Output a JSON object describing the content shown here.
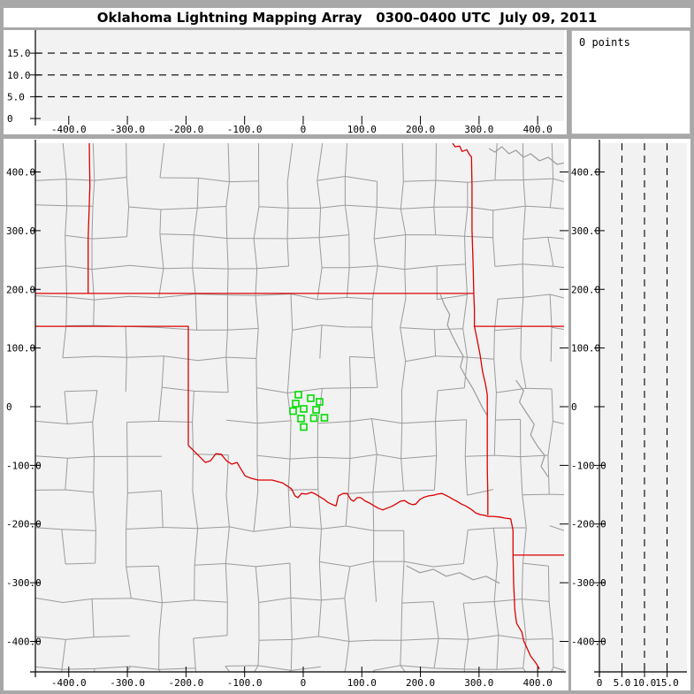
{
  "title": "Oklahoma Lightning Mapping Array   0300–0400 UTC  July 09, 2011",
  "status": {
    "points_label": "0 points"
  },
  "colors": {
    "background": "#a8a8a8",
    "panel": "#ffffff",
    "plot_bg": "#f2f2f2",
    "county_line": "#9b9b9b",
    "state_border": "#dd0000",
    "station_marker": "#00dd00",
    "axis": "#000000"
  },
  "chart_data": [
    {
      "type": "scatter",
      "title": "altitude (km) vs east-west distance (km) — top panel",
      "x_ticks": {
        "values": [
          -400,
          -300,
          -200,
          -100,
          0,
          100,
          200,
          300,
          400
        ],
        "labels": [
          "-400.0",
          "-300.0",
          "-200.0",
          "-100.0",
          "0",
          "100.0",
          "200.0",
          "300.0",
          "400.0"
        ]
      },
      "y_ticks": {
        "values": [
          15,
          10,
          5,
          0
        ],
        "labels": [
          "15.0",
          "10.0",
          "5.0",
          "0"
        ]
      },
      "xlim": [
        -457,
        445
      ],
      "ylim": [
        -0.6,
        20.3
      ],
      "dashed_y": [
        15,
        10,
        5
      ],
      "grid": "dashed horizontal only",
      "points": []
    },
    {
      "type": "scatter",
      "title": "plan view map (north-south km vs east-west km) — center panel",
      "x_ticks": {
        "values": [
          -400,
          -300,
          -200,
          -100,
          0,
          100,
          200,
          300,
          400
        ],
        "labels": [
          "-400.0",
          "-300.0",
          "-200.0",
          "-100.0",
          "0",
          "100.0",
          "200.0",
          "300.0",
          "400.0"
        ]
      },
      "y_ticks": {
        "values": [
          400,
          300,
          200,
          100,
          0,
          -100,
          -200,
          -300,
          -400
        ],
        "labels": [
          "400.0",
          "300.0",
          "200.0",
          "100.0",
          "0",
          "-100.0",
          "-200.0",
          "-300.0",
          "-400.0"
        ]
      },
      "xlim": [
        -457,
        445
      ],
      "ylim": [
        -452,
        449
      ],
      "points": [],
      "stations_km": [
        [
          -8.3,
          20.3
        ],
        [
          12.8,
          14.3
        ],
        [
          -12.8,
          5.3
        ],
        [
          27.9,
          8.3
        ],
        [
          -17.3,
          -7.5
        ],
        [
          0.8,
          -3.8
        ],
        [
          21.9,
          -5.3
        ],
        [
          -3.8,
          -20.3
        ],
        [
          18.1,
          -19.6
        ],
        [
          36.2,
          -18.8
        ],
        [
          0.8,
          -34.6
        ]
      ]
    },
    {
      "type": "scatter",
      "title": "north-south distance (km) vs altitude (km) — right panel",
      "x_ticks": {
        "values": [
          0,
          5,
          10,
          15
        ],
        "labels": [
          "0",
          "5.0",
          "10.0",
          "15.0"
        ]
      },
      "y_ticks": {
        "values": [
          400,
          300,
          200,
          100,
          0,
          -100,
          -200,
          -300,
          -400
        ],
        "labels": [
          "400.0",
          "300.0",
          "200.0",
          "100.0",
          "0",
          "-100.0",
          "-200.0",
          "-300.0",
          "-400.0"
        ]
      },
      "xlim": [
        0,
        19.4
      ],
      "ylim": [
        -452,
        449
      ],
      "dashed_x": [
        5,
        10,
        15
      ],
      "grid": "dashed vertical only",
      "points": []
    }
  ],
  "map_layers": {
    "state_borders_km": [
      [
        [
          -365,
          449
        ],
        [
          -364,
          376
        ],
        [
          -367,
          286
        ],
        [
          -367,
          193
        ]
      ],
      [
        [
          -457,
          193
        ],
        [
          291,
          193
        ]
      ],
      [
        [
          255,
          449
        ],
        [
          259,
          443
        ],
        [
          267,
          444
        ],
        [
          271,
          435
        ],
        [
          279,
          438
        ],
        [
          284,
          429
        ],
        [
          287,
          426
        ],
        [
          288,
          376
        ],
        [
          288,
          301
        ],
        [
          290,
          240
        ],
        [
          291,
          193
        ],
        [
          292,
          166
        ],
        [
          292,
          137
        ],
        [
          297,
          113
        ],
        [
          302,
          87
        ],
        [
          306,
          60
        ],
        [
          311,
          38
        ],
        [
          314,
          20
        ],
        [
          314,
          -15
        ],
        [
          314,
          -60
        ],
        [
          314,
          -105
        ],
        [
          315,
          -151
        ],
        [
          315,
          -185
        ]
      ],
      [
        [
          292,
          137
        ],
        [
          448,
          137
        ]
      ],
      [
        [
          -457,
          137
        ],
        [
          -196,
          137
        ],
        [
          -196,
          -66
        ]
      ],
      [
        [
          -196,
          -66
        ],
        [
          -182,
          -80
        ],
        [
          -173,
          -89
        ],
        [
          -167,
          -95
        ],
        [
          -158,
          -92
        ],
        [
          -149,
          -80
        ],
        [
          -140,
          -81
        ],
        [
          -131,
          -92
        ],
        [
          -122,
          -98
        ],
        [
          -113,
          -95
        ],
        [
          -107,
          -105
        ],
        [
          -99,
          -118
        ],
        [
          -89,
          -122
        ],
        [
          -77,
          -125
        ],
        [
          -65,
          -125
        ],
        [
          -53,
          -125
        ],
        [
          -42,
          -128
        ],
        [
          -35,
          -130
        ],
        [
          -26,
          -136
        ],
        [
          -20,
          -140
        ],
        [
          -14,
          -152
        ],
        [
          -9,
          -155
        ],
        [
          -3,
          -148
        ],
        [
          5,
          -149
        ],
        [
          14,
          -146
        ],
        [
          21,
          -149
        ],
        [
          29,
          -154
        ],
        [
          36,
          -158
        ],
        [
          42,
          -163
        ],
        [
          50,
          -167
        ],
        [
          56,
          -169
        ],
        [
          60,
          -152
        ],
        [
          68,
          -148
        ],
        [
          75,
          -148
        ],
        [
          81,
          -158
        ],
        [
          86,
          -161
        ],
        [
          92,
          -155
        ],
        [
          98,
          -155
        ],
        [
          106,
          -161
        ],
        [
          113,
          -164
        ],
        [
          121,
          -169
        ],
        [
          128,
          -173
        ],
        [
          136,
          -176
        ],
        [
          143,
          -173
        ],
        [
          151,
          -170
        ],
        [
          158,
          -166
        ],
        [
          166,
          -161
        ],
        [
          173,
          -160
        ],
        [
          179,
          -164
        ],
        [
          186,
          -167
        ],
        [
          192,
          -166
        ],
        [
          199,
          -158
        ],
        [
          207,
          -154
        ],
        [
          214,
          -152
        ],
        [
          222,
          -151
        ],
        [
          229,
          -149
        ],
        [
          237,
          -148
        ],
        [
          243,
          -151
        ],
        [
          249,
          -154
        ],
        [
          256,
          -158
        ],
        [
          262,
          -161
        ],
        [
          270,
          -166
        ],
        [
          277,
          -169
        ],
        [
          282,
          -172
        ],
        [
          288,
          -176
        ],
        [
          294,
          -181
        ],
        [
          302,
          -184
        ],
        [
          309,
          -185
        ],
        [
          315,
          -187
        ],
        [
          324,
          -187
        ],
        [
          335,
          -188
        ],
        [
          345,
          -190
        ],
        [
          354,
          -191
        ]
      ],
      [
        [
          354,
          -191
        ],
        [
          358,
          -211
        ],
        [
          358,
          -253
        ]
      ],
      [
        [
          358,
          -253
        ],
        [
          448,
          -253
        ]
      ],
      [
        [
          358,
          -253
        ],
        [
          359,
          -301
        ],
        [
          361,
          -346
        ],
        [
          364,
          -369
        ],
        [
          373,
          -384
        ],
        [
          376,
          -399
        ],
        [
          383,
          -414
        ],
        [
          388,
          -425
        ],
        [
          397,
          -437
        ],
        [
          403,
          -447
        ]
      ]
    ],
    "rivers_km": [
      [
        [
          234,
          191
        ],
        [
          241,
          173
        ],
        [
          250,
          157
        ],
        [
          246,
          139
        ],
        [
          255,
          120
        ],
        [
          264,
          102
        ],
        [
          273,
          86
        ],
        [
          268,
          68
        ],
        [
          279,
          48
        ],
        [
          290,
          30
        ],
        [
          299,
          12
        ],
        [
          306,
          -2
        ],
        [
          314,
          -15
        ]
      ],
      [
        [
          317,
          440
        ],
        [
          327,
          434
        ],
        [
          339,
          443
        ],
        [
          351,
          431
        ],
        [
          363,
          437
        ],
        [
          376,
          425
        ],
        [
          388,
          431
        ],
        [
          403,
          419
        ],
        [
          418,
          425
        ],
        [
          433,
          413
        ],
        [
          448,
          416
        ]
      ],
      [
        [
          363,
          45
        ],
        [
          376,
          27
        ],
        [
          369,
          8
        ],
        [
          382,
          -12
        ],
        [
          394,
          -30
        ],
        [
          388,
          -48
        ],
        [
          400,
          -68
        ],
        [
          412,
          -83
        ],
        [
          406,
          -102
        ],
        [
          418,
          -120
        ]
      ],
      [
        [
          176,
          -271
        ],
        [
          199,
          -283
        ],
        [
          222,
          -277
        ],
        [
          244,
          -289
        ],
        [
          267,
          -283
        ],
        [
          290,
          -295
        ],
        [
          312,
          -289
        ],
        [
          335,
          -301
        ]
      ]
    ]
  }
}
